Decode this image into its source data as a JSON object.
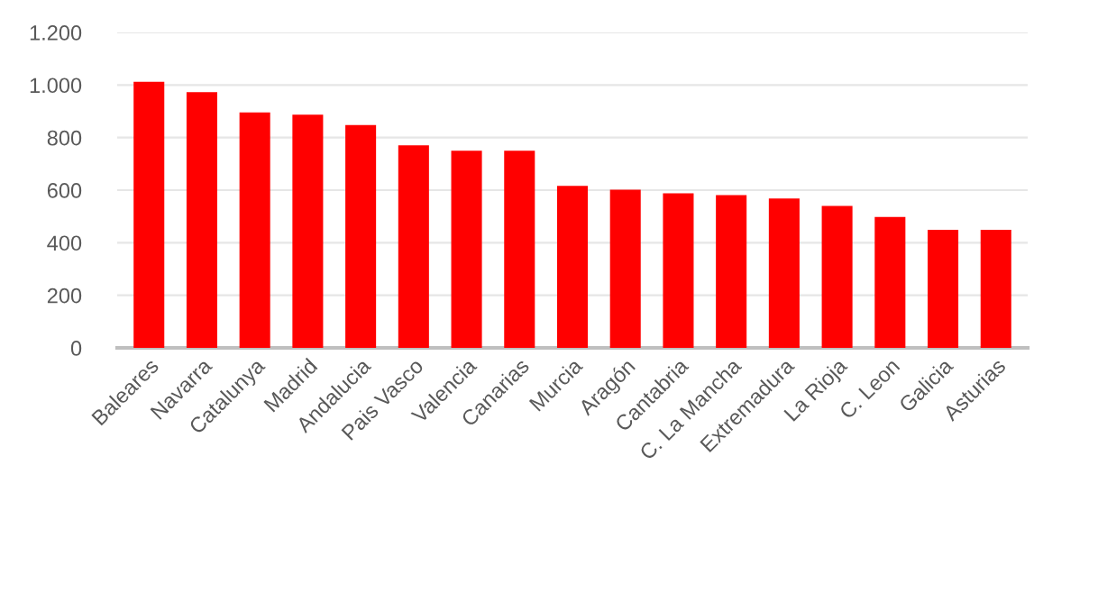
{
  "chart_data": {
    "type": "bar",
    "categories": [
      "Baleares",
      "Navarra",
      "Catalunya",
      "Madrid",
      "Andalucia",
      "Pais Vasco",
      "Valencia",
      "Canarias",
      "Murcia",
      "Aragón",
      "Cantabria",
      "C. La Mancha",
      "Extremadura",
      "La Rioja",
      "C. Leon",
      "Galicia",
      "Asturias"
    ],
    "values": [
      1012,
      973,
      896,
      887,
      848,
      771,
      750,
      750,
      616,
      602,
      588,
      581,
      568,
      540,
      498,
      449,
      449
    ],
    "color": "#ff0000",
    "ylim": [
      0,
      1200
    ],
    "yticks": [
      0,
      {
        "value": 200,
        "label": "200"
      },
      {
        "value": 400,
        "label": "400"
      },
      {
        "value": 600,
        "label": "600"
      },
      {
        "value": 800,
        "label": "800"
      },
      {
        "value": 1000,
        "label": "1.000"
      },
      {
        "value": 1200,
        "label": "1.200"
      }
    ],
    "grid": "y"
  }
}
